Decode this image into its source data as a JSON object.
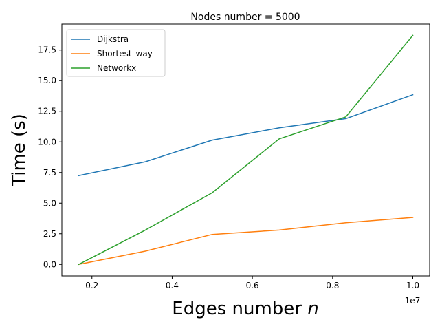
{
  "chart_data": {
    "type": "line",
    "title": "Nodes number = 5000",
    "xlabel_prefix": "Edges number ",
    "xlabel_var": "n",
    "ylabel": "Time (s)",
    "x_offset_text": "1e7",
    "x_tick_labels": [
      "0.2",
      "0.4",
      "0.6",
      "0.8",
      "1.0"
    ],
    "x_ticks": [
      0.2,
      0.4,
      0.6,
      0.8,
      1.0
    ],
    "y_tick_labels": [
      "0.0",
      "2.5",
      "5.0",
      "7.5",
      "10.0",
      "12.5",
      "15.0",
      "17.5"
    ],
    "y_ticks": [
      0.0,
      2.5,
      5.0,
      7.5,
      10.0,
      12.5,
      15.0,
      17.5
    ],
    "xlim": [
      0.125,
      1.042
    ],
    "ylim": [
      -0.94,
      19.62
    ],
    "grid": false,
    "legend_position": "upper-left",
    "x": [
      0.167,
      0.333,
      0.5,
      0.667,
      0.833,
      1.0
    ],
    "series": [
      {
        "name": "Dijkstra",
        "color": "#1f77b4",
        "values": [
          7.25,
          8.38,
          10.15,
          11.15,
          11.9,
          13.85
        ]
      },
      {
        "name": "Shortest_way",
        "color": "#ff7f0e",
        "values": [
          0.0,
          1.08,
          2.45,
          2.8,
          3.4,
          3.83
        ]
      },
      {
        "name": "Networkx",
        "color": "#2ca02c",
        "values": [
          0.0,
          2.8,
          5.85,
          10.25,
          12.05,
          18.7
        ]
      }
    ]
  }
}
